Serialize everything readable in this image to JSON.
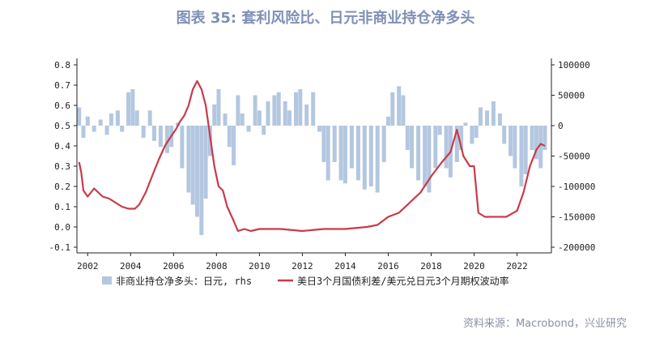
{
  "title": "图表 35: 套利风险比、日元非商业持仓净多头",
  "source": "资料来源：Macrobond，兴业研究",
  "chart_data": {
    "type": "line",
    "x_ticks": [
      "2002",
      "2004",
      "2006",
      "2008",
      "2010",
      "2012",
      "2014",
      "2016",
      "2018",
      "2020",
      "2022"
    ],
    "y_left_ticks": [
      "0.8",
      "0.7",
      "0.6",
      "0.5",
      "0.4",
      "0.3",
      "0.2",
      "0.1",
      "0.0",
      "-0.1"
    ],
    "y_right_ticks": [
      "100000",
      "50000",
      "0",
      "-50000",
      "-100000",
      "-150000",
      "-200000"
    ],
    "x_range": [
      2001.5,
      2023.6
    ],
    "y_left_range": [
      -0.1,
      0.8
    ],
    "y_right_range": [
      -200000,
      100000
    ],
    "colors": {
      "bars": "#b4c7e0",
      "line": "#c93a48"
    },
    "legend": [
      {
        "label": "非商业持仓净多头：日元, rhs",
        "kind": "bar",
        "color": "#b4c7e0"
      },
      {
        "label": "美日3个月国债利差/美元兑日元3个月期权波动率",
        "kind": "line",
        "color": "#c93a48"
      }
    ],
    "series": [
      {
        "axis": "right",
        "kind": "bar",
        "points": [
          [
            2001.6,
            30000
          ],
          [
            2001.8,
            -20000
          ],
          [
            2002.0,
            15000
          ],
          [
            2002.3,
            -10000
          ],
          [
            2002.6,
            10000
          ],
          [
            2002.9,
            -15000
          ],
          [
            2003.1,
            20000
          ],
          [
            2003.4,
            25000
          ],
          [
            2003.6,
            -10000
          ],
          [
            2003.9,
            55000
          ],
          [
            2004.1,
            60000
          ],
          [
            2004.3,
            25000
          ],
          [
            2004.6,
            -20000
          ],
          [
            2004.9,
            25000
          ],
          [
            2005.1,
            -25000
          ],
          [
            2005.4,
            -35000
          ],
          [
            2005.7,
            -45000
          ],
          [
            2005.9,
            -35000
          ],
          [
            2006.2,
            5000
          ],
          [
            2006.4,
            -70000
          ],
          [
            2006.7,
            -110000
          ],
          [
            2006.9,
            -130000
          ],
          [
            2007.1,
            -150000
          ],
          [
            2007.3,
            -180000
          ],
          [
            2007.5,
            -120000
          ],
          [
            2007.7,
            -50000
          ],
          [
            2007.9,
            35000
          ],
          [
            2008.1,
            60000
          ],
          [
            2008.4,
            20000
          ],
          [
            2008.6,
            -35000
          ],
          [
            2008.8,
            -65000
          ],
          [
            2009.0,
            50000
          ],
          [
            2009.2,
            20000
          ],
          [
            2009.5,
            -10000
          ],
          [
            2009.8,
            50000
          ],
          [
            2010.0,
            25000
          ],
          [
            2010.2,
            -15000
          ],
          [
            2010.4,
            40000
          ],
          [
            2010.7,
            50000
          ],
          [
            2010.9,
            55000
          ],
          [
            2011.2,
            40000
          ],
          [
            2011.4,
            25000
          ],
          [
            2011.7,
            55000
          ],
          [
            2011.9,
            60000
          ],
          [
            2012.2,
            35000
          ],
          [
            2012.5,
            55000
          ],
          [
            2012.8,
            -10000
          ],
          [
            2013.0,
            -60000
          ],
          [
            2013.2,
            -90000
          ],
          [
            2013.5,
            -60000
          ],
          [
            2013.8,
            -90000
          ],
          [
            2014.0,
            -95000
          ],
          [
            2014.3,
            -70000
          ],
          [
            2014.6,
            -90000
          ],
          [
            2014.9,
            -105000
          ],
          [
            2015.2,
            -100000
          ],
          [
            2015.5,
            -110000
          ],
          [
            2015.8,
            -60000
          ],
          [
            2016.0,
            15000
          ],
          [
            2016.2,
            55000
          ],
          [
            2016.5,
            65000
          ],
          [
            2016.7,
            50000
          ],
          [
            2016.9,
            -40000
          ],
          [
            2017.1,
            -70000
          ],
          [
            2017.4,
            -90000
          ],
          [
            2017.7,
            -100000
          ],
          [
            2017.9,
            -110000
          ],
          [
            2018.2,
            -70000
          ],
          [
            2018.4,
            -15000
          ],
          [
            2018.7,
            -70000
          ],
          [
            2018.9,
            -85000
          ],
          [
            2019.2,
            -60000
          ],
          [
            2019.4,
            -40000
          ],
          [
            2019.6,
            5000
          ],
          [
            2019.9,
            -30000
          ],
          [
            2020.1,
            -20000
          ],
          [
            2020.3,
            30000
          ],
          [
            2020.6,
            25000
          ],
          [
            2020.9,
            40000
          ],
          [
            2021.2,
            20000
          ],
          [
            2021.4,
            -30000
          ],
          [
            2021.7,
            -50000
          ],
          [
            2021.9,
            -70000
          ],
          [
            2022.2,
            -100000
          ],
          [
            2022.4,
            -80000
          ],
          [
            2022.7,
            -40000
          ],
          [
            2022.9,
            -55000
          ],
          [
            2023.1,
            -70000
          ],
          [
            2023.3,
            -40000
          ]
        ]
      },
      {
        "axis": "left",
        "kind": "line",
        "points": [
          [
            2001.6,
            0.32
          ],
          [
            2001.7,
            0.27
          ],
          [
            2001.8,
            0.18
          ],
          [
            2002.0,
            0.15
          ],
          [
            2002.3,
            0.19
          ],
          [
            2002.5,
            0.17
          ],
          [
            2002.7,
            0.15
          ],
          [
            2003.0,
            0.14
          ],
          [
            2003.3,
            0.12
          ],
          [
            2003.6,
            0.1
          ],
          [
            2003.9,
            0.09
          ],
          [
            2004.2,
            0.09
          ],
          [
            2004.4,
            0.11
          ],
          [
            2004.7,
            0.17
          ],
          [
            2005.0,
            0.25
          ],
          [
            2005.3,
            0.33
          ],
          [
            2005.6,
            0.4
          ],
          [
            2005.9,
            0.45
          ],
          [
            2006.1,
            0.48
          ],
          [
            2006.3,
            0.52
          ],
          [
            2006.5,
            0.55
          ],
          [
            2006.7,
            0.6
          ],
          [
            2006.9,
            0.68
          ],
          [
            2007.1,
            0.72
          ],
          [
            2007.3,
            0.68
          ],
          [
            2007.5,
            0.6
          ],
          [
            2007.7,
            0.45
          ],
          [
            2007.9,
            0.3
          ],
          [
            2008.1,
            0.2
          ],
          [
            2008.3,
            0.18
          ],
          [
            2008.5,
            0.1
          ],
          [
            2008.8,
            0.03
          ],
          [
            2009.0,
            -0.02
          ],
          [
            2009.3,
            -0.01
          ],
          [
            2009.6,
            -0.02
          ],
          [
            2010.0,
            -0.01
          ],
          [
            2011.0,
            -0.01
          ],
          [
            2012.0,
            -0.02
          ],
          [
            2013.0,
            -0.01
          ],
          [
            2014.0,
            -0.01
          ],
          [
            2015.0,
            0.0
          ],
          [
            2015.5,
            0.01
          ],
          [
            2016.0,
            0.05
          ],
          [
            2016.5,
            0.07
          ],
          [
            2017.0,
            0.12
          ],
          [
            2017.5,
            0.17
          ],
          [
            2018.0,
            0.25
          ],
          [
            2018.5,
            0.32
          ],
          [
            2018.9,
            0.37
          ],
          [
            2019.2,
            0.48
          ],
          [
            2019.5,
            0.35
          ],
          [
            2019.8,
            0.3
          ],
          [
            2020.0,
            0.3
          ],
          [
            2020.2,
            0.07
          ],
          [
            2020.5,
            0.05
          ],
          [
            2021.0,
            0.05
          ],
          [
            2021.5,
            0.05
          ],
          [
            2022.0,
            0.08
          ],
          [
            2022.3,
            0.17
          ],
          [
            2022.6,
            0.3
          ],
          [
            2022.9,
            0.38
          ],
          [
            2023.1,
            0.41
          ],
          [
            2023.3,
            0.4
          ]
        ]
      }
    ]
  }
}
